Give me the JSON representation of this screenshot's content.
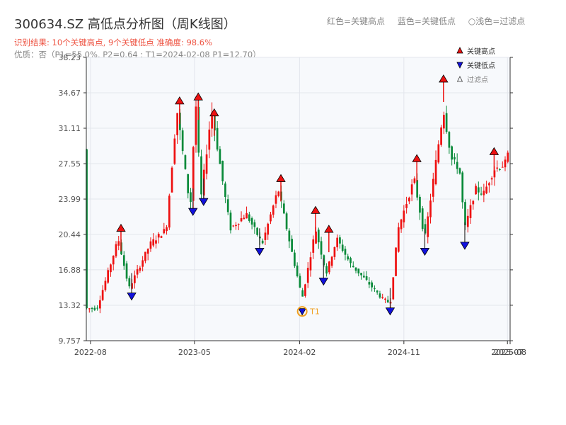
{
  "header": {
    "title": "300634.SZ 高低点分析图（周K线图）",
    "subtitle": "识别结果: 10个关键高点, 9个关键低点   准确度: 98.6%",
    "quality": "优质：否（P1=55.0%, P2=0.64 ; T1=2024-02-08 P1=12.70）",
    "legend_top": [
      "红色=关键高点",
      "蓝色=关键低点",
      "○浅色=过滤点"
    ]
  },
  "colors": {
    "up": "#ee1111",
    "down": "#0a8a3a",
    "high_marker": "#ee1111",
    "low_marker": "#1111dd",
    "t1_marker": "#f0a020",
    "plot_bg": "#f7f9fc",
    "grid": "#e3e6ec"
  },
  "chart_data": {
    "type": "candlestick",
    "title": "300634.SZ 高低点分析图（周K线图）",
    "x_range": [
      "2022-07-21",
      "2025-08-07"
    ],
    "x_ticks": [
      {
        "date": "2022-08-01",
        "label": "2022-08"
      },
      {
        "date": "2023-05-01",
        "label": "2023-05"
      },
      {
        "date": "2024-02-01",
        "label": "2024-02"
      },
      {
        "date": "2024-11-01",
        "label": "2024-11"
      },
      {
        "date": "2025-07-31",
        "label": "2025-07"
      },
      {
        "date": "2025-08-07",
        "label": "2025-08"
      }
    ],
    "ylim": [
      9.757,
      38.23
    ],
    "y_ticks": [
      "9.757",
      "13.32",
      "16.88",
      "20.44",
      "23.99",
      "27.55",
      "31.11",
      "34.67",
      "38.23"
    ],
    "anchors": [
      [
        "2022-07-21",
        13.0
      ],
      [
        "2022-08-18",
        13.0
      ],
      [
        "2022-10-13",
        20.0
      ],
      [
        "2022-11-10",
        15.0
      ],
      [
        "2023-01-05",
        19.5
      ],
      [
        "2023-02-16",
        21.0
      ],
      [
        "2023-03-16",
        33.0
      ],
      [
        "2023-04-20",
        23.0
      ],
      [
        "2023-05-04",
        34.0
      ],
      [
        "2023-05-18",
        24.0
      ],
      [
        "2023-06-15",
        33.0
      ],
      [
        "2023-07-13",
        26.0
      ],
      [
        "2023-08-03",
        21.0
      ],
      [
        "2023-09-14",
        22.5
      ],
      [
        "2023-10-26",
        19.5
      ],
      [
        "2023-12-07",
        25.0
      ],
      [
        "2024-01-04",
        20.0
      ],
      [
        "2024-02-08",
        14.0
      ],
      [
        "2024-03-14",
        21.0
      ],
      [
        "2024-04-11",
        16.5
      ],
      [
        "2024-05-09",
        20.0
      ],
      [
        "2024-06-13",
        17.5
      ],
      [
        "2024-08-01",
        15.5
      ],
      [
        "2024-09-05",
        14.0
      ],
      [
        "2024-09-26",
        13.5
      ],
      [
        "2024-10-17",
        21.0
      ],
      [
        "2024-11-28",
        26.0
      ],
      [
        "2024-12-26",
        20.0
      ],
      [
        "2025-02-13",
        33.0
      ],
      [
        "2025-03-06",
        28.0
      ],
      [
        "2025-03-27",
        27.0
      ],
      [
        "2025-04-10",
        21.0
      ],
      [
        "2025-05-08",
        25.0
      ],
      [
        "2025-05-29",
        24.5
      ],
      [
        "2025-06-26",
        27.0
      ],
      [
        "2025-07-24",
        27.5
      ],
      [
        "2025-08-07",
        29.0
      ]
    ],
    "key_highs": [
      {
        "date": "2022-10-20",
        "value": 20.6
      },
      {
        "date": "2023-03-23",
        "value": 33.4
      },
      {
        "date": "2023-05-11",
        "value": 33.8
      },
      {
        "date": "2023-06-22",
        "value": 32.2
      },
      {
        "date": "2023-12-14",
        "value": 25.6
      },
      {
        "date": "2024-03-14",
        "value": 22.4
      },
      {
        "date": "2024-04-18",
        "value": 20.5
      },
      {
        "date": "2024-12-05",
        "value": 27.6
      },
      {
        "date": "2025-02-13",
        "value": 35.6
      },
      {
        "date": "2025-06-26",
        "value": 28.3
      }
    ],
    "key_lows": [
      {
        "date": "2022-11-17",
        "value": 14.7
      },
      {
        "date": "2023-04-27",
        "value": 23.2
      },
      {
        "date": "2023-05-25",
        "value": 24.2
      },
      {
        "date": "2023-10-19",
        "value": 19.2
      },
      {
        "date": "2024-04-04",
        "value": 16.2
      },
      {
        "date": "2024-09-26",
        "value": 13.2
      },
      {
        "date": "2024-12-26",
        "value": 19.2
      },
      {
        "date": "2025-04-10",
        "value": 19.8
      }
    ],
    "t1": {
      "date": "2024-02-08",
      "value": 12.7,
      "label": "T1"
    },
    "legend": [
      {
        "symbol": "up-triangle",
        "label": "关键高点"
      },
      {
        "symbol": "down-triangle",
        "label": "关键低点"
      },
      {
        "symbol": "hollow-triangle",
        "label": "过滤点"
      }
    ],
    "legend_position": "top-right",
    "grid": true
  }
}
